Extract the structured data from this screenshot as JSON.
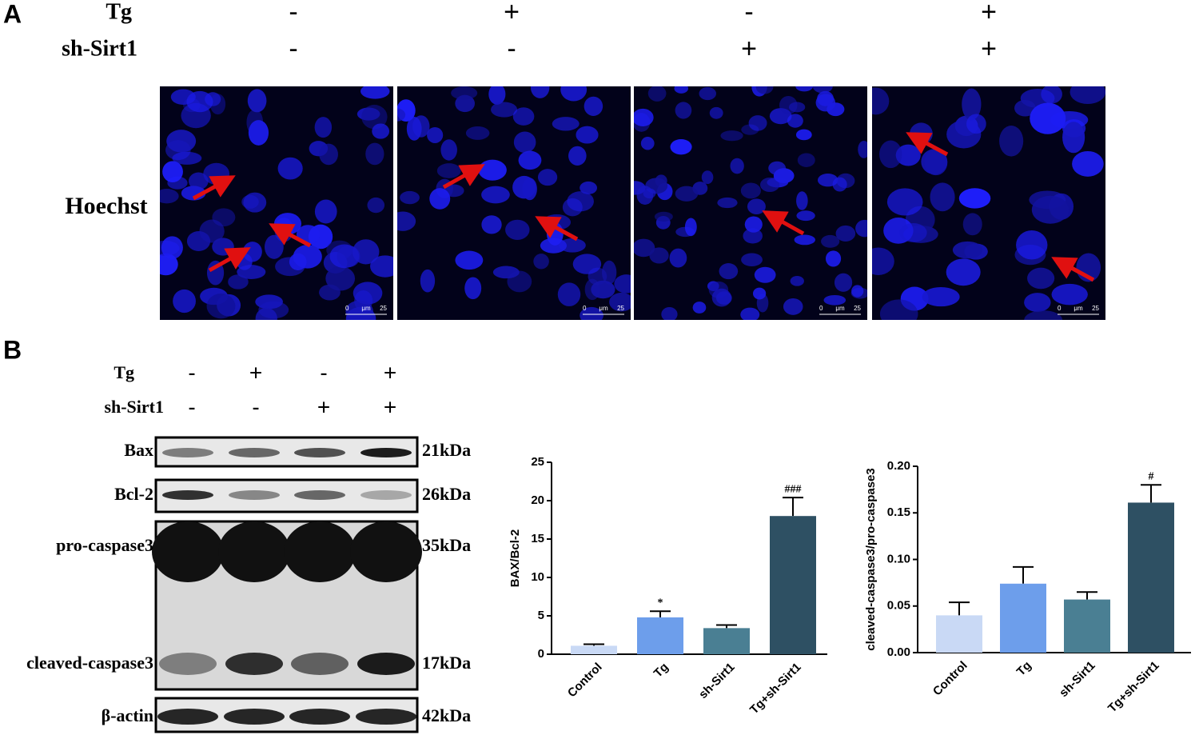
{
  "panel_a": {
    "label": "A",
    "rows": [
      {
        "name": "Tg",
        "signs": [
          "-",
          "+",
          "-",
          "+"
        ]
      },
      {
        "name": "sh-Sirt1",
        "signs": [
          "-",
          "-",
          "+",
          "+"
        ]
      }
    ],
    "stain": "Hoechst",
    "scale_bar": {
      "start": "0",
      "unit": "μm",
      "end": "25"
    }
  },
  "panel_b": {
    "label": "B",
    "rows": [
      {
        "name": "Tg",
        "signs": [
          "-",
          "+",
          "-",
          "+"
        ]
      },
      {
        "name": "sh-Sirt1",
        "signs": [
          "-",
          "-",
          "+",
          "+"
        ]
      }
    ],
    "bands": [
      {
        "name": "Bax",
        "size": "21kDa"
      },
      {
        "name": "Bcl-2",
        "size": "26kDa"
      },
      {
        "name": "pro-caspase3",
        "size": "35kDa"
      },
      {
        "name": "cleaved-caspase3",
        "size": "17kDa"
      },
      {
        "name": "β-actin",
        "size": "42kDa"
      }
    ]
  },
  "chart_data": [
    {
      "type": "bar",
      "y_label": "BAX/Bcl-2",
      "categories": [
        "Control",
        "Tg",
        "sh-Sirt1",
        "Tg+sh-Sirt1"
      ],
      "values": [
        1.1,
        4.8,
        3.4,
        18.0
      ],
      "errors": [
        0.2,
        0.8,
        0.4,
        2.4
      ],
      "significance": [
        null,
        "*",
        null,
        "###"
      ],
      "colors": [
        "#c9d9f5",
        "#6d9eeb",
        "#4a7f93",
        "#2e5063"
      ],
      "ylim": [
        0,
        25
      ],
      "yticks": [
        0,
        5,
        10,
        15,
        20,
        25
      ]
    },
    {
      "type": "bar",
      "y_label": "cleaved-caspase3/pro-caspase3",
      "categories": [
        "Control",
        "Tg",
        "sh-Sirt1",
        "Tg+sh-Sirt1"
      ],
      "values": [
        0.04,
        0.074,
        0.057,
        0.161
      ],
      "errors": [
        0.014,
        0.018,
        0.008,
        0.019
      ],
      "significance": [
        null,
        null,
        null,
        "#"
      ],
      "colors": [
        "#c9d9f5",
        "#6d9eeb",
        "#4a7f93",
        "#2e5063"
      ],
      "ylim": [
        0,
        0.2
      ],
      "yticks": [
        {
          "value": 0,
          "label": "0.00"
        },
        {
          "value": 0.05,
          "label": "0.05"
        },
        {
          "value": 0.1,
          "label": "0.10"
        },
        {
          "value": 0.15,
          "label": "0.15"
        },
        {
          "value": 0.2,
          "label": "0.20"
        }
      ]
    }
  ]
}
